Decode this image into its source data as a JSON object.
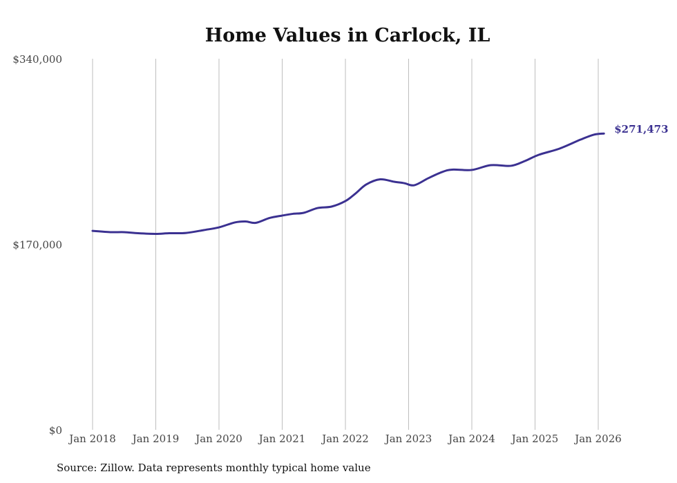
{
  "chart_data": {
    "type": "line",
    "title": "Home Values in Carlock, IL",
    "xlabel": "",
    "ylabel": "",
    "ylim": [
      0,
      340000
    ],
    "xlim": [
      2018,
      2026.1
    ],
    "yticks": [
      0,
      170000,
      340000
    ],
    "ytick_labels": [
      "$0",
      "$170,000",
      "$340,000"
    ],
    "xticks": [
      2018,
      2019,
      2020,
      2021,
      2022,
      2023,
      2024,
      2025,
      2026
    ],
    "xtick_labels": [
      "Jan 2018",
      "Jan 2019",
      "Jan 2020",
      "Jan 2021",
      "Jan 2022",
      "Jan 2023",
      "Jan 2024",
      "Jan 2025",
      "Jan 2026"
    ],
    "grid": "vertical",
    "line_color": "#3b3191",
    "end_label": "$271,473",
    "series": [
      {
        "name": "Typical home value",
        "x": [
          2018.0,
          2018.28,
          2018.5,
          2018.72,
          2019.0,
          2019.21,
          2019.48,
          2019.76,
          2020.0,
          2020.25,
          2020.42,
          2020.58,
          2020.8,
          2021.0,
          2021.17,
          2021.34,
          2021.56,
          2021.78,
          2022.0,
          2022.16,
          2022.33,
          2022.55,
          2022.77,
          2022.93,
          2023.09,
          2023.31,
          2023.53,
          2023.69,
          2024.0,
          2024.3,
          2024.62,
          2024.84,
          2025.06,
          2025.39,
          2025.72,
          2025.93,
          2026.09
        ],
        "values": [
          182300,
          181100,
          181100,
          180100,
          179500,
          180100,
          180400,
          183000,
          185500,
          190000,
          190900,
          189600,
          194100,
          196300,
          197900,
          198800,
          203200,
          204500,
          209600,
          216500,
          224800,
          229500,
          227300,
          226000,
          224100,
          230500,
          236200,
          238400,
          238100,
          242500,
          241900,
          246300,
          252000,
          257700,
          265900,
          270400,
          271473
        ]
      }
    ]
  },
  "source": "Source: Zillow. Data represents monthly typical home value"
}
